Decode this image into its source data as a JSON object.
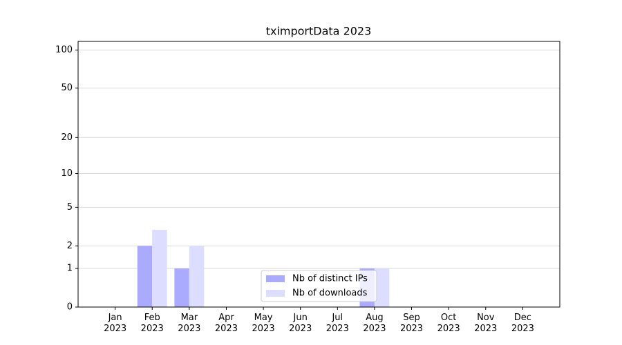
{
  "chart_data": {
    "type": "bar",
    "title": "tximportData 2023",
    "categories": [
      "Jan\n2023",
      "Feb\n2023",
      "Mar\n2023",
      "Apr\n2023",
      "May\n2023",
      "Jun\n2023",
      "Jul\n2023",
      "Aug\n2023",
      "Sep\n2023",
      "Oct\n2023",
      "Nov\n2023",
      "Dec\n2023"
    ],
    "series": [
      {
        "name": "Nb of distinct IPs",
        "color": "#aaaaff",
        "values": [
          0,
          2,
          1,
          0,
          0,
          0,
          0,
          1,
          0,
          0,
          0,
          0
        ]
      },
      {
        "name": "Nb of downloads",
        "color": "#ddddff",
        "values": [
          0,
          3,
          2,
          0,
          0,
          0,
          0,
          1,
          0,
          0,
          0,
          0
        ]
      }
    ],
    "yscale": "log1p",
    "ylim": [
      0,
      117
    ],
    "yticks": [
      0,
      1,
      2,
      5,
      10,
      20,
      50,
      100
    ],
    "grid": true,
    "legend": "lower center"
  }
}
